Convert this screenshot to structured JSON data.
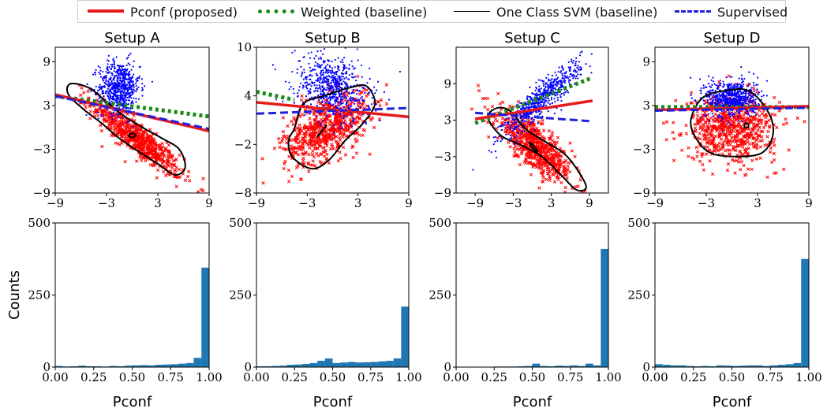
{
  "legend": [
    {
      "label": "Pconf (proposed)",
      "color": "#e41a1c",
      "style": "solid",
      "width": 4
    },
    {
      "label": "Weighted (baseline)",
      "color": "#1a8a1a",
      "style": "dotted",
      "width": 5
    },
    {
      "label": "One Class SVM (baseline)",
      "color": "#000000",
      "style": "solid",
      "width": 1.5
    },
    {
      "label": "Supervised",
      "color": "#1f1fdd",
      "style": "dashed",
      "width": 3
    }
  ],
  "colors": {
    "positive": "#0000ff",
    "negative": "#ff0000",
    "hist": "#1f77b4"
  },
  "chart_data": [
    {
      "type": "scatter",
      "title": "Setup A",
      "xlim": [
        -9,
        9
      ],
      "ylim": [
        -9,
        11
      ],
      "xticks": [
        "−9",
        "−3",
        "3",
        "9"
      ],
      "yticks": [
        {
          "v": -9,
          "t": "−9"
        },
        {
          "v": -3,
          "t": "−3"
        },
        {
          "v": 3,
          "t": "3"
        },
        {
          "v": 9,
          "t": "9"
        }
      ],
      "positive": {
        "mean": [
          -1.5,
          5.5
        ],
        "sd": [
          1.2,
          1.8
        ],
        "rho": 0,
        "n": 650
      },
      "negative": {
        "mean": [
          0.5,
          -1.5
        ],
        "sd": [
          2.6,
          2.6
        ],
        "rho": -0.9,
        "n": 650
      },
      "lines": {
        "pconf": [
          [
            -9,
            4.5
          ],
          [
            9,
            -0.5
          ]
        ],
        "weighted": [
          [
            -9,
            4.3
          ],
          [
            9,
            1.5
          ]
        ],
        "supervised": [
          [
            -9,
            4.3
          ],
          [
            9,
            -0.2
          ]
        ]
      },
      "ocsvm": [
        [
          -7.2,
          6.0
        ],
        [
          -5.0,
          5.4
        ],
        [
          -3.0,
          3.5
        ],
        [
          -1.0,
          1.6
        ],
        [
          1.5,
          -0.2
        ],
        [
          3.5,
          -1.5
        ],
        [
          5.5,
          -3.0
        ],
        [
          6.2,
          -5.5
        ],
        [
          5.0,
          -6.5
        ],
        [
          3.0,
          -5.0
        ],
        [
          1.0,
          -3.5
        ],
        [
          -1.5,
          -1.5
        ],
        [
          -3.5,
          0.5
        ],
        [
          -5.8,
          2.6
        ],
        [
          -7.5,
          4.6
        ]
      ],
      "ocsvm_inner": [
        [
          0.0,
          -0.8
        ],
        [
          0.4,
          -1.1
        ],
        [
          0.0,
          -1.4
        ],
        [
          -0.4,
          -1.1
        ]
      ]
    },
    {
      "type": "scatter",
      "title": "Setup B",
      "xlim": [
        -9,
        9
      ],
      "ylim": [
        -8,
        10
      ],
      "xticks": [
        "−9",
        "−3",
        "3",
        "9"
      ],
      "yticks": [
        {
          "v": -8,
          "t": "−8"
        },
        {
          "v": -2,
          "t": "−2"
        },
        {
          "v": 4,
          "t": "4"
        },
        {
          "v": 10,
          "t": "10"
        }
      ],
      "positive": {
        "mean": [
          0.0,
          5.0
        ],
        "sd": [
          2.2,
          2.0
        ],
        "rho": -0.3,
        "n": 650
      },
      "negative": {
        "mean": [
          -0.8,
          0.0
        ],
        "sd": [
          2.5,
          2.2
        ],
        "rho": 0.5,
        "n": 650
      },
      "lines": {
        "pconf": [
          [
            -9,
            3.2
          ],
          [
            9,
            1.4
          ]
        ],
        "weighted": [
          [
            -9,
            4.5
          ],
          [
            -4.5,
            3.5
          ]
        ],
        "supervised": [
          [
            -9,
            1.8
          ],
          [
            9,
            2.5
          ]
        ]
      },
      "ocsvm": [
        [
          -4.5,
          0.0
        ],
        [
          -3.5,
          3.0
        ],
        [
          -1.0,
          4.0
        ],
        [
          2.0,
          5.0
        ],
        [
          4.0,
          5.2
        ],
        [
          5.0,
          3.0
        ],
        [
          3.5,
          0.5
        ],
        [
          1.5,
          -1.5
        ],
        [
          -0.5,
          -4.0
        ],
        [
          -2.5,
          -5.0
        ],
        [
          -4.8,
          -3.5
        ],
        [
          -5.2,
          -1.5
        ]
      ],
      "ocsvm_inner": [
        [
          -1.8,
          -1.0
        ],
        [
          -1.0,
          0.0
        ],
        [
          -0.8,
          0.3
        ],
        [
          -1.6,
          -0.8
        ]
      ]
    },
    {
      "type": "scatter",
      "title": "Setup C",
      "xlim": [
        -12,
        12
      ],
      "ylim": [
        -9,
        15
      ],
      "xticks": [
        "−9",
        "−3",
        "3",
        "9"
      ],
      "yticks": [
        {
          "v": -9,
          "t": "−9"
        },
        {
          "v": -3,
          "t": "−3"
        },
        {
          "v": 3,
          "t": "3"
        },
        {
          "v": 9,
          "t": "9"
        }
      ],
      "positive": {
        "mean": [
          1.5,
          6.5
        ],
        "sd": [
          3.0,
          3.0
        ],
        "rho": 0.9,
        "n": 650
      },
      "negative": {
        "mean": [
          0.5,
          -1.5
        ],
        "sd": [
          3.0,
          3.0
        ],
        "rho": -0.8,
        "n": 650
      },
      "lines": {
        "pconf": [
          [
            -9,
            3.2
          ],
          [
            9.5,
            6.2
          ]
        ],
        "weighted": [
          [
            -9,
            2.5
          ],
          [
            9.5,
            10.0
          ]
        ],
        "supervised": [
          [
            -9,
            4.2
          ],
          [
            9.5,
            2.8
          ]
        ]
      },
      "ocsvm": [
        [
          -7.0,
          3.5
        ],
        [
          -5.5,
          5.0
        ],
        [
          -3.5,
          4.5
        ],
        [
          -1.0,
          1.5
        ],
        [
          2.0,
          -0.5
        ],
        [
          5.0,
          -2.5
        ],
        [
          7.0,
          -5.0
        ],
        [
          8.5,
          -8.0
        ],
        [
          7.0,
          -8.5
        ],
        [
          4.5,
          -6.0
        ],
        [
          1.5,
          -3.0
        ],
        [
          -2.0,
          -1.0
        ],
        [
          -5.0,
          0.5
        ]
      ],
      "ocsvm_inner": [
        [
          -0.2,
          -0.8
        ],
        [
          0.8,
          -2.0
        ],
        [
          0.6,
          -2.2
        ],
        [
          -0.4,
          -1.0
        ]
      ]
    },
    {
      "type": "scatter",
      "title": "Setup D",
      "xlim": [
        -9,
        9
      ],
      "ylim": [
        -9,
        11
      ],
      "xticks": [
        "−9",
        "−3",
        "3",
        "9"
      ],
      "yticks": [
        {
          "v": -9,
          "t": "−9"
        },
        {
          "v": -3,
          "t": "−3"
        },
        {
          "v": 3,
          "t": "3"
        },
        {
          "v": 9,
          "t": "9"
        }
      ],
      "positive": {
        "mean": [
          0.0,
          4.0
        ],
        "sd": [
          1.5,
          1.3
        ],
        "rho": 0,
        "n": 650
      },
      "negative": {
        "mean": [
          0.0,
          0.0
        ],
        "sd": [
          2.6,
          2.3
        ],
        "rho": 0,
        "n": 650
      },
      "lines": {
        "pconf": [
          [
            -9,
            2.4
          ],
          [
            9,
            2.9
          ]
        ],
        "weighted": [
          [
            -9,
            2.8
          ],
          [
            9,
            2.8
          ]
        ],
        "supervised": [
          [
            -9,
            2.3
          ],
          [
            9,
            2.7
          ]
        ]
      },
      "ocsvm": [
        [
          -4.8,
          1.0
        ],
        [
          -3.5,
          4.0
        ],
        [
          -1.0,
          5.0
        ],
        [
          2.0,
          5.0
        ],
        [
          4.3,
          2.0
        ],
        [
          4.8,
          -1.0
        ],
        [
          3.5,
          -3.5
        ],
        [
          0.5,
          -4.0
        ],
        [
          -2.5,
          -3.5
        ],
        [
          -4.2,
          -1.5
        ]
      ],
      "ocsvm_inner": [
        [
          1.5,
          0.5
        ],
        [
          1.9,
          0.5
        ],
        [
          1.9,
          0.0
        ],
        [
          1.5,
          0.0
        ]
      ]
    },
    {
      "type": "bar",
      "xlabel": "Pconf",
      "ylabel": "Counts",
      "xlim": [
        0,
        1
      ],
      "ylim": [
        0,
        500
      ],
      "xticks": [
        "0.00",
        "0.25",
        "0.50",
        "0.75",
        "1.00"
      ],
      "yticks": [
        {
          "v": 0,
          "t": "0"
        },
        {
          "v": 250,
          "t": "250"
        },
        {
          "v": 500,
          "t": "500"
        }
      ],
      "values": [
        4,
        2,
        3,
        5,
        3,
        3,
        2,
        4,
        3,
        5,
        6,
        7,
        6,
        8,
        9,
        10,
        12,
        14,
        32,
        345
      ]
    },
    {
      "type": "bar",
      "xlabel": "Pconf",
      "ylabel": "",
      "xlim": [
        0,
        1
      ],
      "ylim": [
        0,
        500
      ],
      "xticks": [
        "0.00",
        "0.25",
        "0.50",
        "0.75",
        "1.00"
      ],
      "yticks": [
        {
          "v": 0,
          "t": "0"
        },
        {
          "v": 250,
          "t": "250"
        },
        {
          "v": 500,
          "t": "500"
        }
      ],
      "values": [
        3,
        3,
        4,
        5,
        8,
        9,
        11,
        14,
        22,
        30,
        14,
        16,
        18,
        16,
        17,
        18,
        20,
        22,
        30,
        210
      ]
    },
    {
      "type": "bar",
      "xlabel": "Pconf",
      "ylabel": "",
      "xlim": [
        0,
        1
      ],
      "ylim": [
        0,
        500
      ],
      "xticks": [
        "0.00",
        "0.25",
        "0.50",
        "0.75",
        "1.00"
      ],
      "yticks": [
        {
          "v": 0,
          "t": "0"
        },
        {
          "v": 250,
          "t": "250"
        },
        {
          "v": 500,
          "t": "500"
        }
      ],
      "values": [
        1,
        1,
        1,
        1,
        1,
        2,
        2,
        2,
        3,
        4,
        12,
        4,
        3,
        5,
        4,
        6,
        4,
        12,
        6,
        410
      ]
    },
    {
      "type": "bar",
      "xlabel": "Pconf",
      "ylabel": "",
      "xlim": [
        0,
        1
      ],
      "ylim": [
        0,
        500
      ],
      "xticks": [
        "0.00",
        "0.25",
        "0.50",
        "0.75",
        "1.00"
      ],
      "yticks": [
        {
          "v": 0,
          "t": "0"
        },
        {
          "v": 250,
          "t": "250"
        },
        {
          "v": 500,
          "t": "500"
        }
      ],
      "values": [
        10,
        8,
        6,
        6,
        4,
        3,
        4,
        3,
        6,
        5,
        4,
        5,
        6,
        6,
        4,
        6,
        8,
        10,
        14,
        375
      ]
    }
  ]
}
